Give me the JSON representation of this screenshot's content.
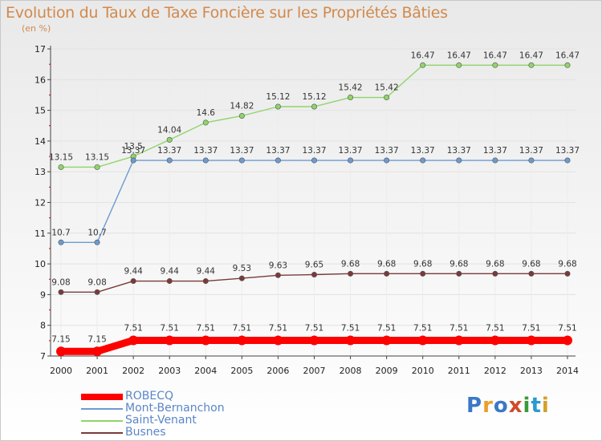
{
  "header": {
    "title": "Evolution du Taux de Taxe Foncière sur les Propriétés Bâties",
    "unit": "(en %)"
  },
  "logo": {
    "text": "Proxiti",
    "colors": [
      "#3a78c8",
      "#e8a02a",
      "#3a78c8",
      "#d24a2a",
      "#3a9a3a",
      "#2a9ad2",
      "#d2a02a"
    ]
  },
  "chart_data": {
    "type": "line",
    "title": "Evolution du Taux de Taxe Foncière sur les Propriétés Bâties",
    "ylabel": "(en %)",
    "xlabel": "",
    "x": [
      "2000",
      "2001",
      "2002",
      "2003",
      "2004",
      "2005",
      "2006",
      "2007",
      "2008",
      "2009",
      "2010",
      "2011",
      "2012",
      "2013",
      "2014"
    ],
    "ylim": [
      7,
      17
    ],
    "yticks": [
      "7",
      "8",
      "9",
      "10",
      "11",
      "12",
      "13",
      "14",
      "15",
      "16",
      "17"
    ],
    "grid": "horizontal",
    "legend_position": "bottom-left",
    "series": [
      {
        "name": "ROBECQ",
        "color": "#ff0000",
        "values": [
          7.15,
          7.15,
          7.51,
          7.51,
          7.51,
          7.51,
          7.51,
          7.51,
          7.51,
          7.51,
          7.51,
          7.51,
          7.51,
          7.51,
          7.51
        ],
        "labels": [
          "7.15",
          "7.15",
          "7.51",
          "7.51",
          "7.51",
          "7.51",
          "7.51",
          "7.51",
          "7.51",
          "7.51",
          "7.51",
          "7.51",
          "7.51",
          "7.51",
          "7.51"
        ]
      },
      {
        "name": "Mont-Bernanchon",
        "color": "#6b9bd1",
        "values": [
          10.7,
          10.7,
          13.37,
          13.37,
          13.37,
          13.37,
          13.37,
          13.37,
          13.37,
          13.37,
          13.37,
          13.37,
          13.37,
          13.37,
          13.37
        ],
        "labels": [
          "10.7",
          "10.7",
          "13.37",
          "13.37",
          "13.37",
          "13.37",
          "13.37",
          "13.37",
          "13.37",
          "13.37",
          "13.37",
          "13.37",
          "13.37",
          "13.37",
          "13.37"
        ]
      },
      {
        "name": "Saint-Venant",
        "color": "#8fd46a",
        "values": [
          13.15,
          13.15,
          13.5,
          14.04,
          14.6,
          14.82,
          15.12,
          15.12,
          15.42,
          15.42,
          16.47,
          16.47,
          16.47,
          16.47,
          16.47
        ],
        "labels": [
          "13.15",
          "13.15",
          "13.5",
          "14.04",
          "14.6",
          "14.82",
          "15.12",
          "15.12",
          "15.42",
          "15.42",
          "16.47",
          "16.47",
          "16.47",
          "16.47",
          "16.47"
        ]
      },
      {
        "name": "Busnes",
        "color": "#7a3a3a",
        "values": [
          9.08,
          9.08,
          9.44,
          9.44,
          9.44,
          9.53,
          9.63,
          9.65,
          9.68,
          9.68,
          9.68,
          9.68,
          9.68,
          9.68,
          9.68
        ],
        "labels": [
          "9.08",
          "9.08",
          "9.44",
          "9.44",
          "9.44",
          "9.53",
          "9.63",
          "9.65",
          "9.68",
          "9.68",
          "9.68",
          "9.68",
          "9.68",
          "9.68",
          "9.68"
        ]
      }
    ]
  }
}
